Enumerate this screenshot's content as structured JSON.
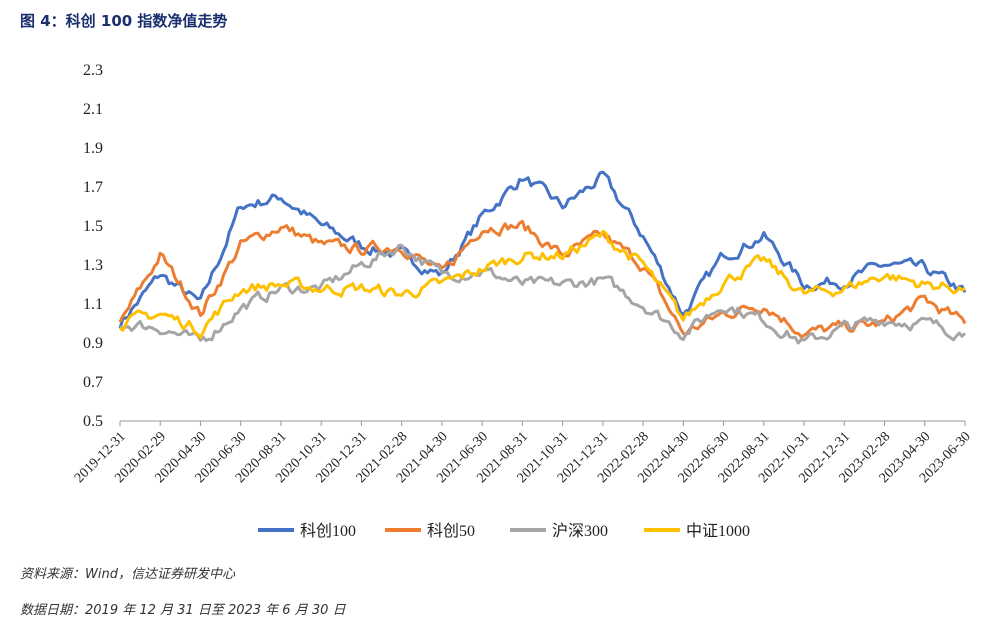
{
  "title": "图 4：科创 100 指数净值走势",
  "source": "资料来源：Wind，信达证券研发中心",
  "data_date": "数据日期：2019 年 12 月 31 日至 2023 年 6 月 30 日",
  "chart_data": {
    "type": "line",
    "title": "科创 100 指数净值走势",
    "xlabel": "",
    "ylabel": "",
    "ylim": [
      0.5,
      2.3
    ],
    "yticks": [
      "2.3",
      "2.1",
      "1.9",
      "1.7",
      "1.5",
      "1.3",
      "1.1",
      "0.9",
      "0.7",
      "0.5"
    ],
    "x": [
      "2019-12-31",
      "2020-02-29",
      "2020-04-30",
      "2020-06-30",
      "2020-08-31",
      "2020-10-31",
      "2020-12-31",
      "2021-02-28",
      "2021-04-30",
      "2021-06-30",
      "2021-08-31",
      "2021-10-31",
      "2021-12-31",
      "2022-02-28",
      "2022-04-30",
      "2022-06-30",
      "2022-08-31",
      "2022-10-31",
      "2022-12-31",
      "2023-02-28",
      "2023-04-30",
      "2023-06-30"
    ],
    "legend_position": "bottom",
    "series": [
      {
        "name": "科创100",
        "color": "#4472C4",
        "values": [
          1.0,
          1.25,
          1.1,
          1.6,
          1.65,
          1.5,
          1.4,
          1.35,
          1.25,
          1.55,
          1.75,
          1.6,
          1.75,
          1.45,
          1.05,
          1.35,
          1.45,
          1.2,
          1.22,
          1.3,
          1.28,
          1.16
        ]
      },
      {
        "name": "科创50",
        "color": "#ED7D31",
        "values": [
          1.0,
          1.35,
          1.05,
          1.4,
          1.5,
          1.4,
          1.38,
          1.4,
          1.25,
          1.5,
          1.5,
          1.35,
          1.45,
          1.3,
          0.95,
          1.05,
          1.1,
          0.95,
          0.98,
          1.0,
          1.12,
          1.0
        ]
      },
      {
        "name": "沪深300",
        "color": "#A5A5A5",
        "values": [
          1.0,
          0.98,
          0.9,
          1.08,
          1.18,
          1.18,
          1.3,
          1.4,
          1.25,
          1.27,
          1.2,
          1.2,
          1.22,
          1.1,
          0.95,
          1.1,
          1.02,
          0.9,
          0.98,
          1.02,
          1.0,
          0.95
        ]
      },
      {
        "name": "中证1000",
        "color": "#FFC000",
        "values": [
          1.0,
          1.05,
          0.97,
          1.18,
          1.2,
          1.18,
          1.18,
          1.15,
          1.2,
          1.28,
          1.35,
          1.35,
          1.45,
          1.3,
          1.02,
          1.22,
          1.32,
          1.15,
          1.18,
          1.25,
          1.2,
          1.18
        ]
      }
    ]
  }
}
